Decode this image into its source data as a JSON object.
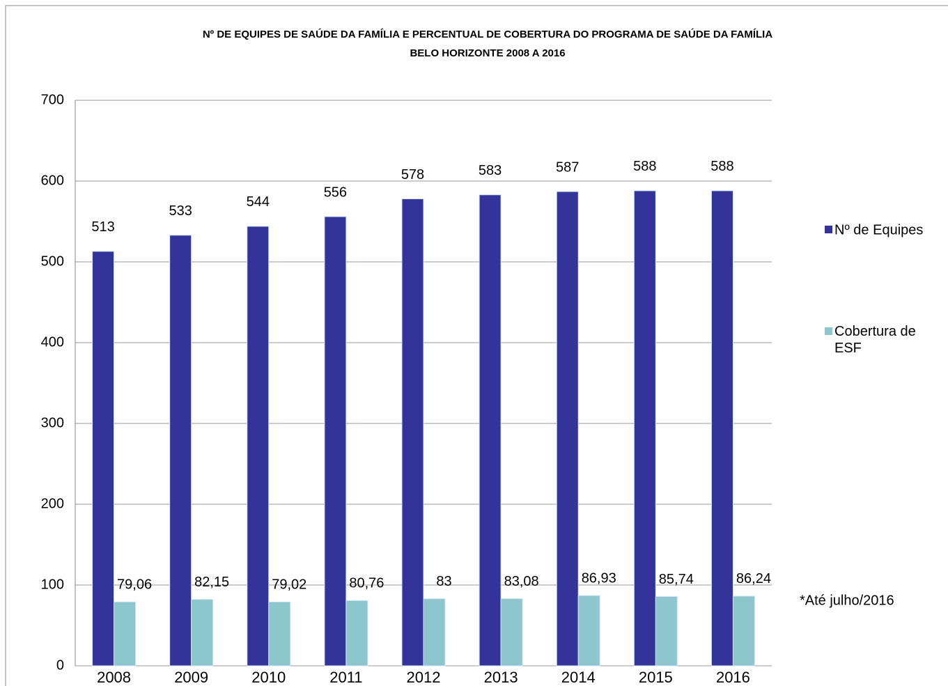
{
  "chart_data": {
    "type": "bar",
    "title": "Nº DE EQUIPES DE SAÚDE DA FAMÍLIA  E PERCENTUAL DE COBERTURA DO PROGRAMA DE SAÚDE DA FAMÍLIA",
    "subtitle": "BELO HORIZONTE 2008 A 2016",
    "categories": [
      "2008",
      "2009",
      "2010",
      "2011",
      "2012",
      "2013",
      "2014",
      "2015",
      "2016"
    ],
    "series": [
      {
        "name": "Nº de Equipes",
        "color": "#333399",
        "values": [
          513,
          533,
          544,
          556,
          578,
          583,
          587,
          588,
          588
        ]
      },
      {
        "name": "Cobertura de ESF",
        "color": "#8EC6CD",
        "values": [
          79.06,
          82.15,
          79.02,
          80.76,
          83,
          83.08,
          86.93,
          85.74,
          86.24
        ],
        "value_labels": [
          "79,06",
          "82,15",
          "79,02",
          "80,76",
          "83",
          "83,08",
          "86,93",
          "85,74",
          "86,24"
        ]
      }
    ],
    "ylim": [
      0,
      700
    ],
    "yticks": [
      0,
      100,
      200,
      300,
      400,
      500,
      600,
      700
    ],
    "grid": true,
    "annotation": "*Até julho/2016",
    "legend": "right"
  }
}
